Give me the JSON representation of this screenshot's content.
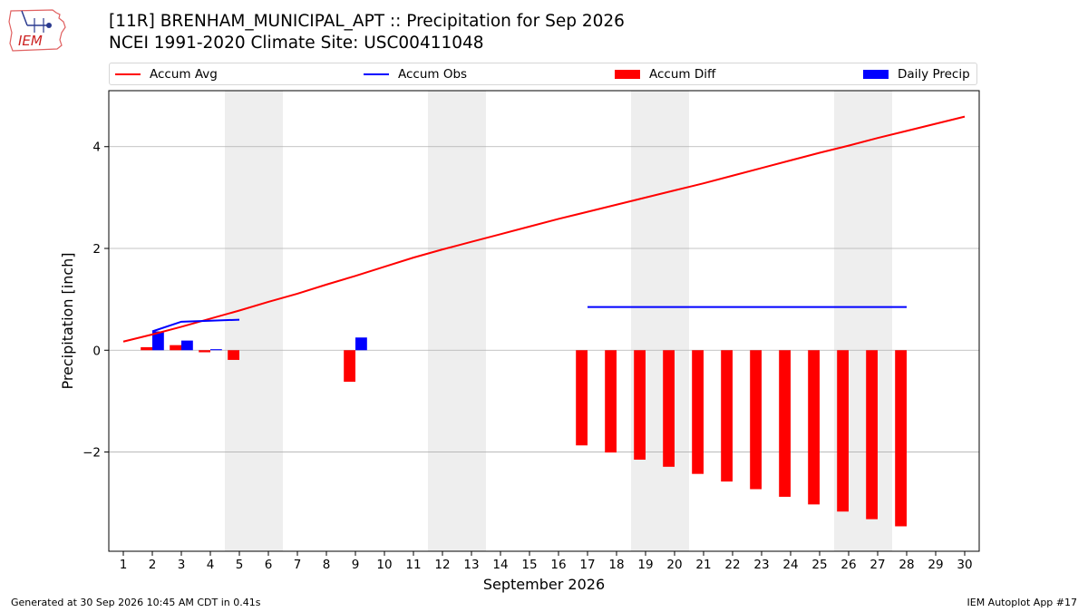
{
  "logo": {
    "text": "IEM",
    "icon": "iem-iowa-logo"
  },
  "header": {
    "title_line1": "[11R] BRENHAM_MUNICIPAL_APT :: Precipitation for Sep 2026",
    "title_line2": "NCEI 1991-2020 Climate Site: USC00411048"
  },
  "footer": {
    "left": "Generated at 30 Sep 2026 10:45 AM CDT in 0.41s",
    "right": "IEM Autoplot App #17"
  },
  "colors": {
    "avg": "#ff0000",
    "obs": "#0000ff",
    "diff": "#ff0000",
    "daily": "#0000ff",
    "weekend": "#eeeeee",
    "grid": "#b0b0b0"
  },
  "chart_data": {
    "type": "bar",
    "xlabel": "September 2026",
    "ylabel": "Precipitation [inch]",
    "xlim": [
      0.5,
      30.5
    ],
    "ylim": [
      -3.95,
      5.1
    ],
    "x_ticks": [
      1,
      2,
      3,
      4,
      5,
      6,
      7,
      8,
      9,
      10,
      11,
      12,
      13,
      14,
      15,
      16,
      17,
      18,
      19,
      20,
      21,
      22,
      23,
      24,
      25,
      26,
      27,
      28,
      29,
      30
    ],
    "y_ticks": [
      -2,
      0,
      2,
      4
    ],
    "y_tick_labels": [
      "−2",
      "0",
      "2",
      "4"
    ],
    "grid": "horizontal",
    "legend_placement": "top",
    "weekend_days": [
      5,
      6,
      12,
      13,
      19,
      20,
      26,
      27
    ],
    "legend": [
      "Accum Avg",
      "Accum Obs",
      "Accum Diff",
      "Daily Precip"
    ],
    "series": [
      {
        "name": "Accum Avg",
        "kind": "line",
        "x": [
          1,
          2,
          3,
          4,
          5,
          6,
          7,
          8,
          9,
          10,
          11,
          12,
          13,
          14,
          15,
          16,
          17,
          18,
          19,
          20,
          21,
          22,
          23,
          24,
          25,
          26,
          27,
          28,
          29,
          30
        ],
        "values": [
          0.17,
          0.31,
          0.46,
          0.62,
          0.78,
          0.95,
          1.11,
          1.29,
          1.46,
          1.64,
          1.82,
          1.98,
          2.13,
          2.28,
          2.43,
          2.58,
          2.72,
          2.86,
          3.0,
          3.14,
          3.28,
          3.43,
          3.58,
          3.73,
          3.88,
          4.02,
          4.17,
          4.31,
          4.45,
          4.59
        ]
      },
      {
        "name": "Accum Obs",
        "kind": "line",
        "segments": [
          {
            "x": [
              2,
              3,
              4,
              5
            ],
            "values": [
              0.37,
              0.56,
              0.58,
              0.6
            ]
          },
          {
            "x": [
              17,
              28
            ],
            "values": [
              0.85,
              0.85
            ]
          }
        ]
      },
      {
        "name": "Accum Diff",
        "kind": "bar",
        "x": [
          2,
          3,
          4,
          5,
          9,
          17,
          18,
          19,
          20,
          21,
          22,
          23,
          24,
          25,
          26,
          27,
          28
        ],
        "values": [
          0.06,
          0.1,
          -0.04,
          -0.19,
          -0.62,
          -1.87,
          -2.01,
          -2.15,
          -2.29,
          -2.43,
          -2.58,
          -2.73,
          -2.88,
          -3.03,
          -3.17,
          -3.32,
          -3.46
        ]
      },
      {
        "name": "Daily Precip",
        "kind": "bar",
        "x": [
          2,
          3,
          4,
          9
        ],
        "values": [
          0.37,
          0.19,
          0.02,
          0.25
        ]
      }
    ]
  }
}
